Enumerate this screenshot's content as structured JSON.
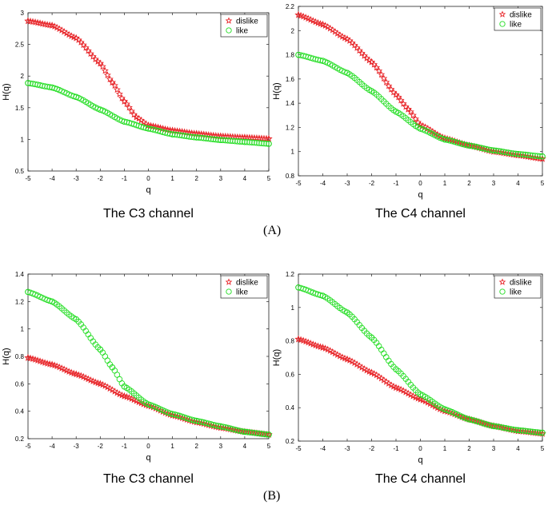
{
  "panels": [
    {
      "label": "(A)",
      "id": "A"
    },
    {
      "label": "(B)",
      "id": "B"
    }
  ],
  "colors": {
    "dislike": "#e8262a",
    "like": "#22dd22",
    "axis": "#222222"
  },
  "chart_data": [
    {
      "type": "scatter",
      "panel": "A",
      "title": "The C3 channel",
      "xlabel": "q",
      "ylabel": "H(q)",
      "xlim": [
        -5,
        5
      ],
      "ylim": [
        0.5,
        3
      ],
      "xticks": [
        -5,
        -4,
        -3,
        -2,
        -1,
        0,
        1,
        2,
        3,
        4,
        5
      ],
      "xtick_labels": [
        "-5",
        "-4",
        "-3",
        "-2",
        "-1",
        "0",
        "1",
        "2",
        "3",
        "4",
        "5"
      ],
      "yticks": [
        0.5,
        1,
        1.5,
        2,
        2.5,
        3
      ],
      "ytick_labels": [
        "0.5",
        "1",
        "1.5",
        "2",
        "2.5",
        "3"
      ],
      "legend": {
        "position": "top-right",
        "entries": [
          "dislike",
          "like"
        ]
      },
      "series": [
        {
          "name": "dislike",
          "marker": "star",
          "points": [
            [
              -5,
              2.87
            ],
            [
              -4,
              2.8
            ],
            [
              -3,
              2.6
            ],
            [
              -2,
              2.2
            ],
            [
              -1.5,
              1.9
            ],
            [
              -1,
              1.6
            ],
            [
              -0.5,
              1.35
            ],
            [
              0,
              1.22
            ],
            [
              1,
              1.14
            ],
            [
              2,
              1.09
            ],
            [
              3,
              1.05
            ],
            [
              4,
              1.03
            ],
            [
              5,
              1.01
            ]
          ]
        },
        {
          "name": "like",
          "marker": "circle",
          "points": [
            [
              -5,
              1.89
            ],
            [
              -4,
              1.82
            ],
            [
              -3,
              1.67
            ],
            [
              -2,
              1.47
            ],
            [
              -1,
              1.28
            ],
            [
              0,
              1.17
            ],
            [
              1,
              1.08
            ],
            [
              2,
              1.03
            ],
            [
              3,
              0.99
            ],
            [
              4,
              0.96
            ],
            [
              5,
              0.93
            ]
          ]
        }
      ]
    },
    {
      "type": "scatter",
      "panel": "A",
      "title": "The C4 channel",
      "xlabel": "q",
      "ylabel": "H(q)",
      "xlim": [
        -5,
        5
      ],
      "ylim": [
        0.8,
        2.2
      ],
      "xticks": [
        -5,
        -4,
        -3,
        -2,
        -1,
        0,
        1,
        2,
        3,
        4,
        5
      ],
      "xtick_labels": [
        "-5",
        "-4",
        "-3",
        "-2",
        "-1",
        "0",
        "1",
        "2",
        "3",
        "4",
        "5"
      ],
      "yticks": [
        0.8,
        1,
        1.2,
        1.4,
        1.6,
        1.8,
        2,
        2.2
      ],
      "ytick_labels": [
        "0.8",
        "1",
        "1.2",
        "1.4",
        "1.6",
        "1.8",
        "2",
        "2.2"
      ],
      "legend": {
        "position": "top-right",
        "entries": [
          "dislike",
          "like"
        ]
      },
      "series": [
        {
          "name": "dislike",
          "marker": "star",
          "points": [
            [
              -5,
              2.13
            ],
            [
              -4,
              2.05
            ],
            [
              -3,
              1.93
            ],
            [
              -2,
              1.74
            ],
            [
              -1,
              1.47
            ],
            [
              -0.5,
              1.35
            ],
            [
              0,
              1.22
            ],
            [
              1,
              1.11
            ],
            [
              2,
              1.05
            ],
            [
              3,
              1.0
            ],
            [
              4,
              0.97
            ],
            [
              5,
              0.94
            ]
          ]
        },
        {
          "name": "like",
          "marker": "circle",
          "points": [
            [
              -5,
              1.8
            ],
            [
              -4,
              1.75
            ],
            [
              -3,
              1.65
            ],
            [
              -2,
              1.5
            ],
            [
              -1,
              1.33
            ],
            [
              0,
              1.19
            ],
            [
              1,
              1.1
            ],
            [
              2,
              1.05
            ],
            [
              3,
              1.01
            ],
            [
              4,
              0.98
            ],
            [
              5,
              0.96
            ]
          ]
        }
      ]
    },
    {
      "type": "scatter",
      "panel": "B",
      "title": "The C3 channel",
      "xlabel": "q",
      "ylabel": "H(q)",
      "xlim": [
        -5,
        5
      ],
      "ylim": [
        0.2,
        1.4
      ],
      "xticks": [
        -5,
        -4,
        -3,
        -2,
        -1,
        0,
        1,
        2,
        3,
        4,
        5
      ],
      "xtick_labels": [
        "-5",
        "-4",
        "-3",
        "-2",
        "-1",
        "0",
        "1",
        "2",
        "3",
        "4",
        "5"
      ],
      "yticks": [
        0.2,
        0.4,
        0.6,
        0.8,
        1,
        1.2,
        1.4
      ],
      "ytick_labels": [
        "0.2",
        "0.4",
        "0.6",
        "0.8",
        "1",
        "1.2",
        "1.4"
      ],
      "legend": {
        "position": "top-right",
        "entries": [
          "dislike",
          "like"
        ]
      },
      "series": [
        {
          "name": "dislike",
          "marker": "star",
          "points": [
            [
              -5,
              0.79
            ],
            [
              -4,
              0.74
            ],
            [
              -3,
              0.67
            ],
            [
              -2,
              0.6
            ],
            [
              -1,
              0.51
            ],
            [
              0,
              0.44
            ],
            [
              1,
              0.37
            ],
            [
              2,
              0.32
            ],
            [
              3,
              0.28
            ],
            [
              4,
              0.25
            ],
            [
              5,
              0.23
            ]
          ]
        },
        {
          "name": "like",
          "marker": "circle",
          "points": [
            [
              -5,
              1.27
            ],
            [
              -4,
              1.2
            ],
            [
              -3,
              1.07
            ],
            [
              -2,
              0.85
            ],
            [
              -1.5,
              0.72
            ],
            [
              -1,
              0.58
            ],
            [
              0,
              0.45
            ],
            [
              1,
              0.38
            ],
            [
              2,
              0.33
            ],
            [
              3,
              0.29
            ],
            [
              4,
              0.25
            ],
            [
              5,
              0.23
            ]
          ]
        }
      ]
    },
    {
      "type": "scatter",
      "panel": "B",
      "title": "The C4 channel",
      "xlabel": "q",
      "ylabel": "H(q)",
      "xlim": [
        -5,
        5
      ],
      "ylim": [
        0.2,
        1.2
      ],
      "xticks": [
        -5,
        -4,
        -3,
        -2,
        -1,
        0,
        1,
        2,
        3,
        4,
        5
      ],
      "xtick_labels": [
        "-5",
        "-4",
        "-3",
        "-2",
        "-1",
        "0",
        "1",
        "2",
        "3",
        "4",
        "5"
      ],
      "yticks": [
        0.2,
        0.4,
        0.6,
        0.8,
        1,
        1.2
      ],
      "ytick_labels": [
        "0.2",
        "0.4",
        "0.6",
        "0.8",
        "1",
        "1.2"
      ],
      "legend": {
        "position": "top-right",
        "entries": [
          "dislike",
          "like"
        ]
      },
      "series": [
        {
          "name": "dislike",
          "marker": "star",
          "points": [
            [
              -5,
              0.81
            ],
            [
              -4,
              0.76
            ],
            [
              -3,
              0.69
            ],
            [
              -2,
              0.61
            ],
            [
              -1,
              0.52
            ],
            [
              0,
              0.45
            ],
            [
              1,
              0.38
            ],
            [
              2,
              0.33
            ],
            [
              3,
              0.29
            ],
            [
              4,
              0.26
            ],
            [
              5,
              0.245
            ]
          ]
        },
        {
          "name": "like",
          "marker": "circle",
          "points": [
            [
              -5,
              1.12
            ],
            [
              -4,
              1.07
            ],
            [
              -3,
              0.97
            ],
            [
              -2,
              0.82
            ],
            [
              -1,
              0.63
            ],
            [
              0,
              0.48
            ],
            [
              1,
              0.39
            ],
            [
              2,
              0.33
            ],
            [
              3,
              0.29
            ],
            [
              4,
              0.265
            ],
            [
              5,
              0.25
            ]
          ]
        }
      ]
    }
  ]
}
